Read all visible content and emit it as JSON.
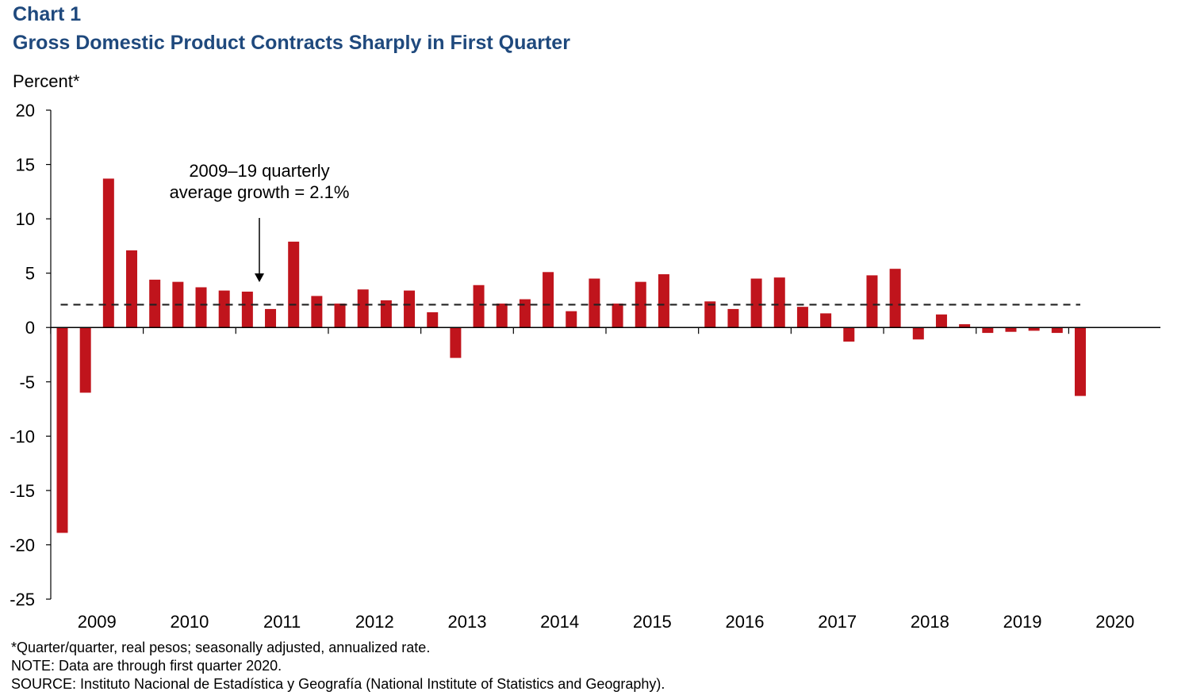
{
  "header": {
    "chart_label": "Chart 1",
    "title": "Gross Domestic Product Contracts Sharply in First Quarter"
  },
  "chart_data": {
    "type": "bar",
    "title": "Gross Domestic Product Contracts Sharply in First Quarter",
    "ylabel": "Percent*",
    "xlabel": "",
    "ylim": [
      -25,
      20
    ],
    "yticks": [
      20,
      15,
      10,
      5,
      0,
      -5,
      -10,
      -15,
      -20,
      -25
    ],
    "year_labels": [
      "2009",
      "2010",
      "2011",
      "2012",
      "2013",
      "2014",
      "2015",
      "2016",
      "2017",
      "2018",
      "2019",
      "2020"
    ],
    "categories": [
      "2009 Q1",
      "2009 Q2",
      "2009 Q3",
      "2009 Q4",
      "2010 Q1",
      "2010 Q2",
      "2010 Q3",
      "2010 Q4",
      "2011 Q1",
      "2011 Q2",
      "2011 Q3",
      "2011 Q4",
      "2012 Q1",
      "2012 Q2",
      "2012 Q3",
      "2012 Q4",
      "2013 Q1",
      "2013 Q2",
      "2013 Q3",
      "2013 Q4",
      "2014 Q1",
      "2014 Q2",
      "2014 Q3",
      "2014 Q4",
      "2015 Q1",
      "2015 Q2",
      "2015 Q3",
      "2015 Q4",
      "2016 Q1",
      "2016 Q2",
      "2016 Q3",
      "2016 Q4",
      "2017 Q1",
      "2017 Q2",
      "2017 Q3",
      "2017 Q4",
      "2018 Q1",
      "2018 Q2",
      "2018 Q3",
      "2018 Q4",
      "2019 Q1",
      "2019 Q2",
      "2019 Q3",
      "2019 Q4",
      "2020 Q1"
    ],
    "values": [
      -18.9,
      -6.0,
      13.7,
      7.1,
      4.4,
      4.2,
      3.7,
      3.4,
      3.3,
      1.7,
      7.9,
      2.9,
      2.2,
      3.5,
      2.5,
      3.4,
      1.4,
      -2.8,
      3.9,
      2.2,
      2.6,
      5.1,
      1.5,
      4.5,
      2.2,
      4.2,
      4.9,
      0.0,
      2.4,
      1.7,
      4.5,
      4.6,
      1.9,
      1.3,
      -1.3,
      4.8,
      5.4,
      -1.1,
      1.2,
      0.3,
      -0.5,
      -0.4,
      -0.3,
      -0.5,
      -6.3
    ],
    "bar_color": "#c0141c",
    "reference_line": {
      "value": 2.1,
      "style": "dashed",
      "color": "#222222"
    },
    "annotation": {
      "line1": "2009–19 quarterly",
      "line2": "average growth = 2.1%"
    },
    "grid": false,
    "legend": "none"
  },
  "notes": {
    "footnote": "*Quarter/quarter, real pesos; seasonally adjusted, annualized rate.",
    "note": "NOTE: Data are through first quarter 2020.",
    "source": "SOURCE: Instituto Nacional de Estadística y Geografía (National Institute of Statistics and Geography)."
  }
}
